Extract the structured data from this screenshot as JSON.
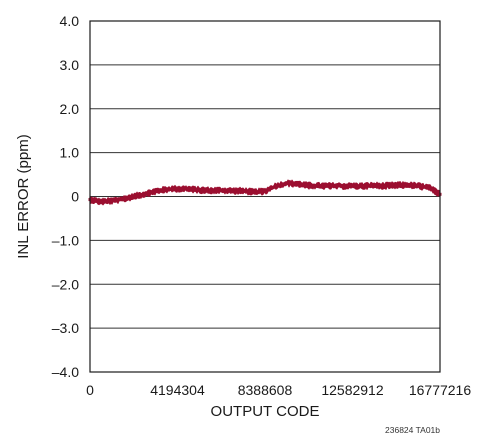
{
  "chart_data": {
    "type": "line",
    "title": "",
    "xlabel": "OUTPUT CODE",
    "ylabel": "INL ERROR (ppm)",
    "xlim": [
      0,
      16777216
    ],
    "ylim": [
      -4.0,
      4.0
    ],
    "x_ticks": [
      0,
      4194304,
      8388608,
      12582912,
      16777216
    ],
    "x_tick_labels": [
      "0",
      "4194304",
      "8388608",
      "12582912",
      "16777216"
    ],
    "y_ticks": [
      4.0,
      3.0,
      2.0,
      1.0,
      0,
      -1.0,
      -2.0,
      -3.0,
      -4.0
    ],
    "y_tick_labels": [
      "4.0",
      "3.0",
      "2.0",
      "1.0",
      "0",
      "–1.0",
      "–2.0",
      "–3.0",
      "–4.0"
    ],
    "grid": "horizontal",
    "series": [
      {
        "color": "#9b0f30",
        "band_width": 0.1,
        "x": [
          0,
          524288,
          1048576,
          1572864,
          2097152,
          2621440,
          3145728,
          3670016,
          4194304,
          4718592,
          5242880,
          5767168,
          6291456,
          6815744,
          7340032,
          7864320,
          8388608,
          8912896,
          9437184,
          9961472,
          10485760,
          11010048,
          11534336,
          12058624,
          12582912,
          13107200,
          13631488,
          14155776,
          14680064,
          15204352,
          15728640,
          16252928,
          16777216
        ],
        "y": [
          -0.07,
          -0.12,
          -0.1,
          -0.06,
          0.0,
          0.06,
          0.12,
          0.16,
          0.18,
          0.17,
          0.15,
          0.14,
          0.14,
          0.13,
          0.13,
          0.1,
          0.12,
          0.24,
          0.3,
          0.29,
          0.25,
          0.24,
          0.24,
          0.24,
          0.24,
          0.24,
          0.25,
          0.24,
          0.26,
          0.26,
          0.24,
          0.2,
          0.05
        ]
      }
    ]
  },
  "figure_id": "236824 TA01b"
}
